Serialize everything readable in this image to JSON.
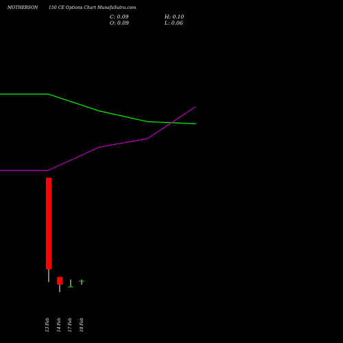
{
  "header": {
    "symbol": "MOTHERSON",
    "title_rest": "150 CE Options Chart MunafaSutra.com"
  },
  "ohlc": {
    "close_label": "C: 0.09",
    "high_label": "H: 0.10",
    "open_label": "O: 0.09",
    "low_label": "L: 0.06"
  },
  "colors": {
    "background": "#000000",
    "up": "#00c000",
    "down": "#ff0000",
    "green_line": "#00ff00",
    "purple_line": "#c000c0",
    "text": "#ffffff"
  },
  "chart_data": {
    "type": "candlestick",
    "categories": [
      "13 Feb",
      "14 Feb",
      "17 Feb",
      "18 Feb"
    ],
    "candles": [
      {
        "date": "13 Feb",
        "open": 0.9,
        "high": 0.9,
        "low": 0.08,
        "close": 0.18,
        "color": "red"
      },
      {
        "date": "14 Feb",
        "open": 0.12,
        "high": 0.12,
        "low": 0.0,
        "close": 0.06,
        "color": "red"
      },
      {
        "date": "17 Feb",
        "open": 0.04,
        "high": 0.1,
        "low": 0.04,
        "close": 0.045,
        "color": "green"
      },
      {
        "date": "18 Feb",
        "open": 0.09,
        "high": 0.1,
        "low": 0.06,
        "close": 0.09,
        "color": "green"
      }
    ],
    "series": [
      {
        "color": "#00ff00",
        "points": [
          [
            0,
            0.88
          ],
          [
            70,
            0.88
          ],
          [
            145,
            0.8
          ],
          [
            215,
            0.75
          ],
          [
            285,
            0.74
          ]
        ]
      },
      {
        "color": "#c000c0",
        "points": [
          [
            0,
            0.52
          ],
          [
            70,
            0.52
          ],
          [
            145,
            0.63
          ],
          [
            215,
            0.67
          ],
          [
            285,
            0.82
          ]
        ]
      }
    ]
  }
}
